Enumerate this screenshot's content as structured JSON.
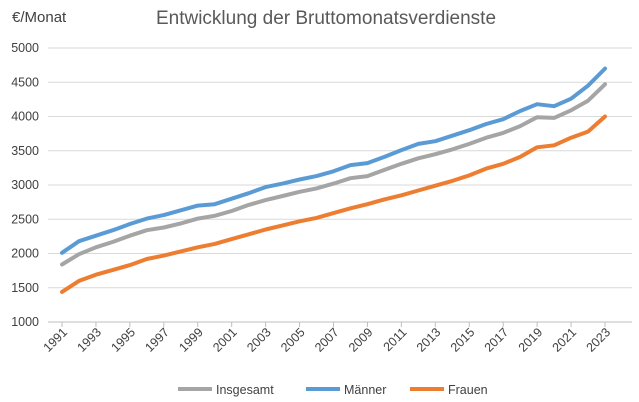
{
  "chart_data": {
    "type": "line",
    "title": "Entwicklung der Bruttomonatsverdienste",
    "ylabel": "€/Monat",
    "xlabel": "",
    "ylim": [
      1000,
      5000
    ],
    "yticks": [
      1000,
      1500,
      2000,
      2500,
      3000,
      3500,
      4000,
      4500,
      5000
    ],
    "x": [
      1991,
      1992,
      1993,
      1994,
      1995,
      1996,
      1997,
      1998,
      1999,
      2000,
      2001,
      2002,
      2003,
      2004,
      2005,
      2006,
      2007,
      2008,
      2009,
      2010,
      2011,
      2012,
      2013,
      2014,
      2015,
      2016,
      2017,
      2018,
      2019,
      2020,
      2021,
      2022,
      2023
    ],
    "xticks": [
      1991,
      1993,
      1995,
      1997,
      1999,
      2001,
      2003,
      2005,
      2007,
      2009,
      2011,
      2013,
      2015,
      2017,
      2019,
      2021,
      2023
    ],
    "grid": "horizontal",
    "legend": "bottom",
    "series": [
      {
        "name": "Insgesamt",
        "color": "#a5a5a5",
        "values": [
          1840,
          1990,
          2090,
          2170,
          2260,
          2340,
          2380,
          2440,
          2510,
          2550,
          2620,
          2710,
          2780,
          2840,
          2900,
          2950,
          3020,
          3100,
          3130,
          3220,
          3310,
          3390,
          3450,
          3520,
          3600,
          3690,
          3760,
          3860,
          3990,
          3980,
          4090,
          4230,
          4470
        ]
      },
      {
        "name": "Männer",
        "color": "#5b9bd5",
        "values": [
          2010,
          2180,
          2260,
          2340,
          2430,
          2510,
          2560,
          2630,
          2700,
          2720,
          2800,
          2880,
          2970,
          3020,
          3080,
          3130,
          3200,
          3290,
          3320,
          3410,
          3510,
          3600,
          3640,
          3720,
          3800,
          3890,
          3960,
          4080,
          4180,
          4150,
          4260,
          4450,
          4700
        ]
      },
      {
        "name": "Frauen",
        "color": "#ed7d31",
        "values": [
          1440,
          1600,
          1690,
          1760,
          1830,
          1920,
          1970,
          2030,
          2090,
          2140,
          2210,
          2280,
          2350,
          2410,
          2470,
          2520,
          2590,
          2660,
          2720,
          2790,
          2850,
          2920,
          2990,
          3060,
          3140,
          3240,
          3310,
          3410,
          3550,
          3580,
          3690,
          3780,
          4000
        ]
      }
    ]
  }
}
